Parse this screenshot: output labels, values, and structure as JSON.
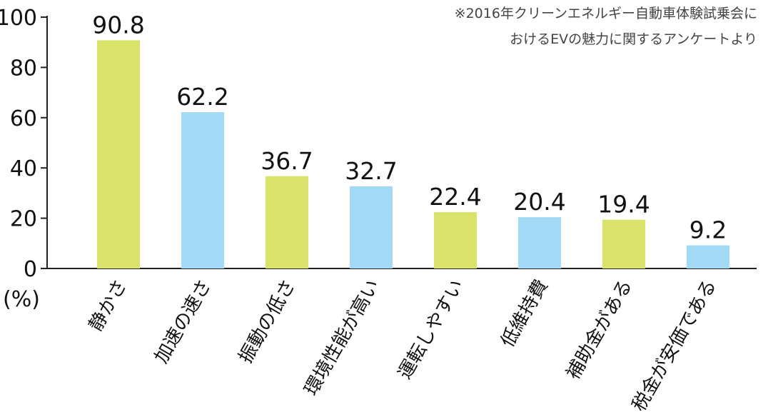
{
  "note": {
    "line1": "※2016年クリーンエネルギー自動車体験試乗会に",
    "line2": "おけるEVの魅力に関するアンケートより"
  },
  "chart_data": {
    "type": "bar",
    "title": "",
    "xlabel": "",
    "ylabel": "(%)",
    "ylim": [
      0,
      100
    ],
    "yticks": [
      "0",
      "20",
      "40",
      "60",
      "80",
      "100"
    ],
    "grid": false,
    "categories": [
      "静かさ",
      "加速の速さ",
      "振動の低さ",
      "環境性能が高い",
      "運転しやすい",
      "低維持費",
      "補助金がある",
      "税金が安価である"
    ],
    "values": [
      90.8,
      62.2,
      36.7,
      32.7,
      22.4,
      20.4,
      19.4,
      9.2
    ],
    "value_labels": [
      "90.8",
      "62.2",
      "36.7",
      "32.7",
      "22.4",
      "20.4",
      "19.4",
      "9.2"
    ],
    "bar_colors": [
      "#d9e26a",
      "#a3d9f5",
      "#d9e26a",
      "#a3d9f5",
      "#d9e26a",
      "#a3d9f5",
      "#d9e26a",
      "#a3d9f5"
    ]
  }
}
